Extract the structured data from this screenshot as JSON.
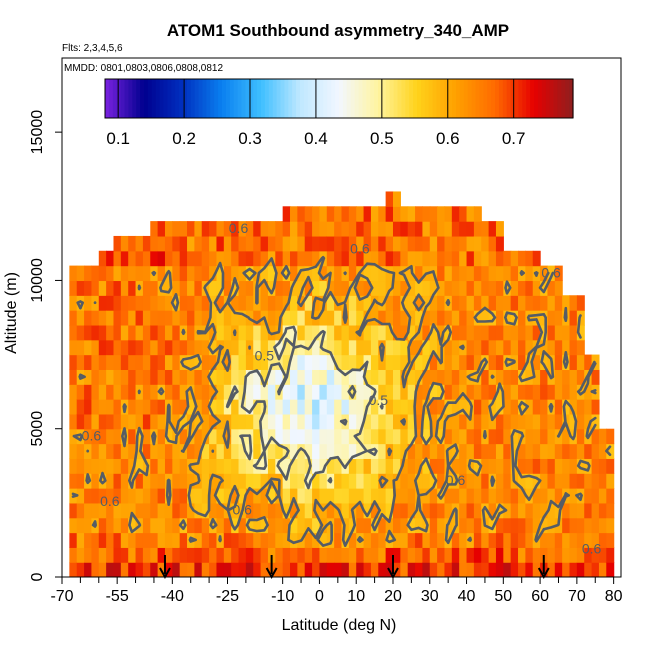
{
  "chart_data": {
    "type": "heatmap",
    "title": "ATOM1 Southbound asymmetry_340_AMP",
    "subtitle_lines": [
      "Flts: 2,3,4,5,6",
      "MMDD: 0801,0803,0806,0808,0812"
    ],
    "xlabel": "Latitude (deg N)",
    "ylabel": "Altitude (m)",
    "xlim": [
      -70,
      82
    ],
    "ylim": [
      0,
      17500
    ],
    "x_ticks": [
      -70,
      -55,
      -40,
      -25,
      -10,
      0,
      10,
      20,
      30,
      40,
      50,
      60,
      70,
      80
    ],
    "x_minor_ticks": [
      -65,
      -60,
      -50,
      -45,
      -35,
      -30,
      -20,
      -15,
      -5,
      5,
      15,
      25,
      35,
      45,
      55,
      65,
      75
    ],
    "y_ticks": [
      0,
      5000,
      10000,
      15000
    ],
    "colorbar": {
      "min": 0.08,
      "max": 0.79,
      "ticks": [
        0.1,
        0.2,
        0.3,
        0.4,
        0.5,
        0.6,
        0.7
      ],
      "colors": [
        "#7a22e0",
        "#00008f",
        "#0030c0",
        "#0a80f0",
        "#3fbfff",
        "#bfe8ff",
        "#f2f7ff",
        "#fff4a0",
        "#ffd21a",
        "#ffa000",
        "#ff6a00",
        "#e60000",
        "#8f1f1f"
      ]
    },
    "contour_levels": [
      0.5,
      0.6
    ],
    "contour_labels": [
      {
        "x": -22,
        "y": 11600,
        "text": "0.6"
      },
      {
        "x": 11,
        "y": 10900,
        "text": "0.6"
      },
      {
        "x": 63,
        "y": 10100,
        "text": "0.6"
      },
      {
        "x": -15,
        "y": 7300,
        "text": "0.5"
      },
      {
        "x": 16,
        "y": 5800,
        "text": "0.5"
      },
      {
        "x": -62,
        "y": 4600,
        "text": "0.6"
      },
      {
        "x": 37,
        "y": 3100,
        "text": "0.6"
      },
      {
        "x": -57,
        "y": 2400,
        "text": "0.6"
      },
      {
        "x": -21,
        "y": 2100,
        "text": "0.6"
      },
      {
        "x": 74,
        "y": 800,
        "text": "0.6"
      }
    ],
    "profile_latitudes": [
      -42,
      -13,
      20,
      61
    ],
    "field_description": {
      "cells_x": "latitude bands from -70 to 80 every 2 deg",
      "cells_y": "altitude bands from 0 to 13400 m every 500 m",
      "typical_values": {
        "near_surface_0_1000m": 0.69,
        "tropical_midtroposphere_-25_to_20deg_3000_8000m": 0.47,
        "midlatitudes": 0.6,
        "upper_edges": 0.65
      }
    }
  }
}
